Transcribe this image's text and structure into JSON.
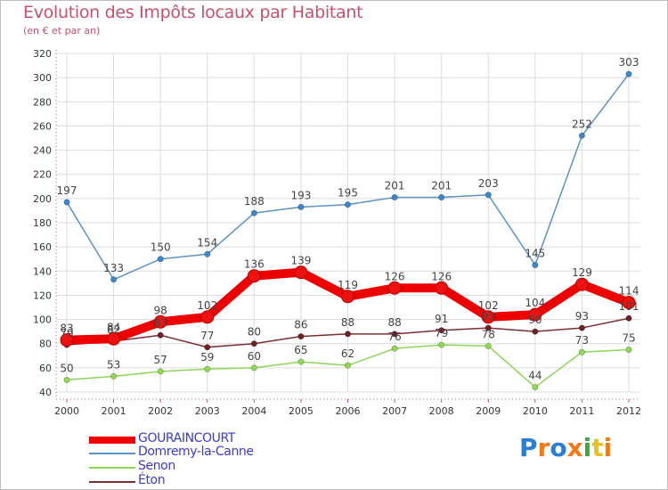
{
  "title": "Evolution des Impôts locaux par Habitant",
  "subtitle": "(en € et par an)",
  "brand": "Proxiti",
  "colors": {
    "title": "#c8506e",
    "axis": "#c8506e",
    "grid": "#dcdcdc",
    "legend_text": "#3a3ad6"
  },
  "chart_data": {
    "type": "line",
    "title": "Evolution des Impôts locaux par Habitant",
    "subtitle": "(en € et par an)",
    "xlabel": "",
    "ylabel": "",
    "ylim": [
      40,
      320
    ],
    "yticks": [
      40,
      60,
      80,
      100,
      120,
      140,
      160,
      180,
      200,
      220,
      240,
      260,
      280,
      300,
      320
    ],
    "grid": true,
    "legend_position": "bottom-left",
    "categories": [
      "2000",
      "2001",
      "2002",
      "2003",
      "2004",
      "2005",
      "2006",
      "2007",
      "2008",
      "2009",
      "2010",
      "2011",
      "2012"
    ],
    "series": [
      {
        "name": "GOURAINCOURT",
        "color": "#ee0000",
        "marker_fill": "#ee1111",
        "values": [
          83,
          84,
          98,
          102,
          136,
          139,
          119,
          126,
          126,
          102,
          104,
          129,
          114
        ]
      },
      {
        "name": "Domremy-la-Canne",
        "color": "#5b93c4",
        "marker_fill": "#3a86cf",
        "values": [
          197,
          133,
          150,
          154,
          188,
          193,
          195,
          201,
          201,
          203,
          145,
          252,
          303
        ]
      },
      {
        "name": "Senon",
        "color": "#8ed45a",
        "marker_fill": "#8edb52",
        "values": [
          50,
          53,
          57,
          59,
          60,
          65,
          62,
          76,
          79,
          78,
          44,
          73,
          75
        ]
      },
      {
        "name": "Éton",
        "color": "#7a2e33",
        "marker_fill": "#6e2025",
        "values": [
          79,
          82,
          87,
          77,
          80,
          86,
          88,
          88,
          91,
          93,
          90,
          93,
          101
        ]
      }
    ]
  }
}
